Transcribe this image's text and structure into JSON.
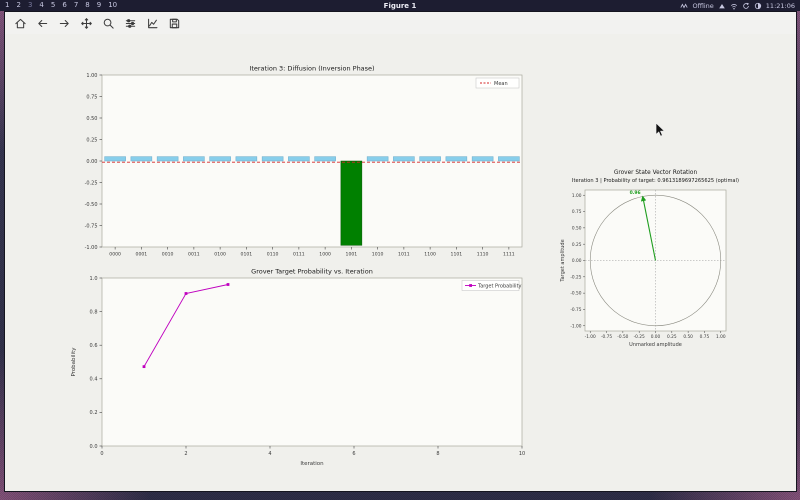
{
  "topbar": {
    "workspaces": [
      "1",
      "2",
      "3",
      "4",
      "5",
      "6",
      "7",
      "8",
      "9",
      "10"
    ],
    "active_index": 2,
    "window_title": "Figure 1",
    "status": {
      "offline_label": "Offline",
      "time": "11:21:06",
      "icon_names": [
        "network-activity-icon",
        "triangle-up-icon",
        "wifi-icon",
        "refresh-icon",
        "brightness-icon"
      ]
    }
  },
  "mpl_toolbar": {
    "icon_names": [
      "home-icon",
      "back-icon",
      "forward-icon",
      "pan-icon",
      "zoom-icon",
      "subplots-icon",
      "plot-edit-icon",
      "save-icon"
    ]
  },
  "chart_data": [
    {
      "type": "bar",
      "name": "diffusion-amplitudes",
      "title": "Iteration 3: Diffusion (Inversion Phase)",
      "categories": [
        "0000",
        "0001",
        "0010",
        "0011",
        "0100",
        "0101",
        "0110",
        "0111",
        "1000",
        "1001",
        "1010",
        "1011",
        "1100",
        "1101",
        "1110",
        "1111"
      ],
      "values": [
        0.0508,
        0.0508,
        0.0508,
        0.0508,
        0.0508,
        0.0508,
        0.0508,
        0.0508,
        0.0508,
        -0.9805,
        0.0508,
        0.0508,
        0.0508,
        0.0508,
        0.0508,
        0.0508
      ],
      "target_index": 9,
      "mean": -0.0137,
      "legend": [
        "Mean"
      ],
      "legend_position": "upper right",
      "ylim": [
        -1.0,
        1.0
      ],
      "yticks": [
        -1,
        -0.75,
        -0.5,
        -0.25,
        0,
        0.25,
        0.5,
        0.75,
        1
      ],
      "ytick_labels": [
        "-1.00",
        "-0.75",
        "-0.50",
        "-0.25",
        "0.00",
        "0.25",
        "0.50",
        "0.75",
        "1.00"
      ],
      "bar_color": "#87ceeb",
      "target_color": "#008000",
      "mean_color": "#d62728",
      "grid": false
    },
    {
      "type": "line",
      "name": "target-probability-vs-iteration",
      "title": "Grover Target Probability vs. Iteration",
      "x": [
        1,
        2,
        3
      ],
      "y": [
        0.4724,
        0.9077,
        0.9613
      ],
      "xlabel": "Iteration",
      "ylabel": "Probability",
      "xlim": [
        0,
        10
      ],
      "ylim": [
        0.0,
        1.0
      ],
      "xticks": [
        0,
        2,
        4,
        6,
        8,
        10
      ],
      "xtick_labels": [
        "0",
        "2",
        "4",
        "6",
        "8",
        "10"
      ],
      "yticks": [
        0,
        0.2,
        0.4,
        0.6,
        0.8,
        1
      ],
      "ytick_labels": [
        "0.0",
        "0.2",
        "0.4",
        "0.6",
        "0.8",
        "1.0"
      ],
      "legend": [
        "Target Probability"
      ],
      "legend_position": "upper right",
      "line_color": "#bf00bf",
      "marker": "square",
      "grid": false
    },
    {
      "type": "scatter",
      "name": "state-vector-rotation",
      "title": "Grover State Vector Rotation",
      "subtitle": "Iteration 3 | Probability of target: 0.9613189697265625 (optimal)",
      "xlabel": "Unmarked amplitude",
      "ylabel": "Target amplitude",
      "xlim": [
        -1.08,
        1.08
      ],
      "ylim": [
        -1.08,
        1.08
      ],
      "xticks": [
        -1,
        -0.75,
        -0.5,
        -0.25,
        0,
        0.25,
        0.5,
        0.75,
        1
      ],
      "xtick_labels": [
        "-1.00",
        "-0.75",
        "-0.50",
        "-0.25",
        "0.00",
        "0.25",
        "0.50",
        "0.75",
        "1.00"
      ],
      "yticks": [
        -1,
        -0.75,
        -0.5,
        -0.25,
        0,
        0.25,
        0.5,
        0.75,
        1
      ],
      "ytick_labels": [
        "-1.00",
        "-0.75",
        "-0.50",
        "-0.25",
        "0.00",
        "0.25",
        "0.50",
        "0.75",
        "1.00"
      ],
      "unit_circle": true,
      "crosshair": true,
      "vector": {
        "x": -0.1961,
        "y": 0.9805,
        "label": "0.96",
        "color": "#1f9e1f"
      }
    }
  ]
}
